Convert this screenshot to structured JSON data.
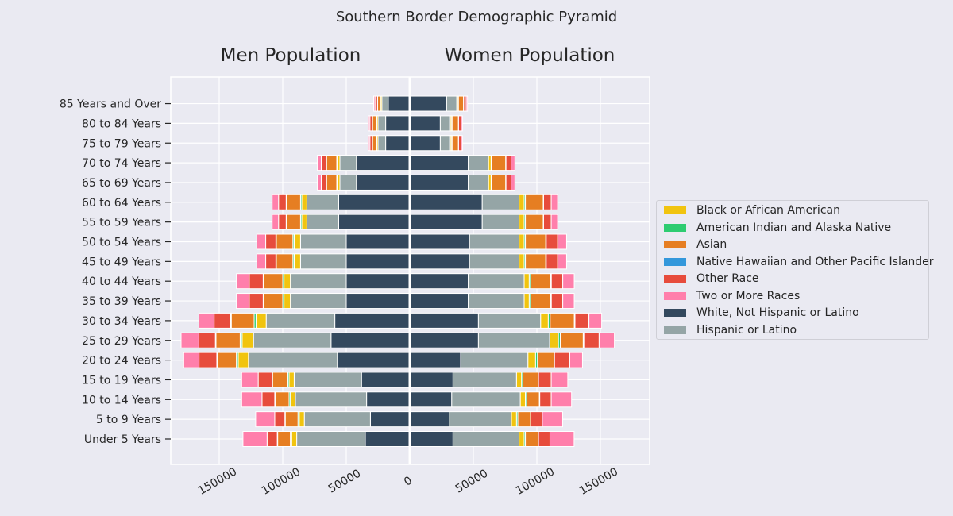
{
  "chart_data": {
    "type": "bar",
    "title": "Southern Border Demographic Pyramid",
    "left_title": "Men Population",
    "right_title": "Women Population",
    "categories": [
      "Under 5 Years",
      "5 to 9 Years",
      "10 to 14 Years",
      "15 to 19 Years",
      "20 to 24 Years",
      "25 to 29 Years",
      "30 to 34 Years",
      "35 to 39 Years",
      "40 to 44 Years",
      "45 to 49 Years",
      "50 to 54 Years",
      "55 to 59 Years",
      "60 to 64 Years",
      "65 to 69 Years",
      "70 to 74 Years",
      "75 to 79 Years",
      "80 to 84 Years",
      "85 Years and Over"
    ],
    "xlim": [
      -190000,
      190000
    ],
    "xticks": [
      -150000,
      -100000,
      -50000,
      0,
      50000,
      100000,
      150000
    ],
    "xtick_labels": [
      "150000",
      "100000",
      "50000",
      "0",
      "50000",
      "100000",
      "150000"
    ],
    "grid": true,
    "legend_position": "center-right",
    "series": [
      {
        "name": "White, Not Hispanic or Latino",
        "color": "#34495e",
        "men": [
          35000,
          31000,
          34000,
          38000,
          57000,
          62000,
          59000,
          50000,
          50000,
          50000,
          50000,
          56000,
          56000,
          42000,
          42000,
          19000,
          19000,
          17000
        ],
        "women": [
          34000,
          31000,
          33000,
          34000,
          40000,
          54000,
          54000,
          46000,
          46000,
          47000,
          47000,
          57000,
          57000,
          46000,
          46000,
          24000,
          24000,
          29000
        ]
      },
      {
        "name": "Hispanic or Latino",
        "color": "#95a5a6",
        "men": [
          54000,
          52000,
          56000,
          53000,
          70000,
          61000,
          54000,
          44000,
          44000,
          36000,
          36000,
          25000,
          25000,
          13000,
          13000,
          6000,
          6000,
          5000
        ],
        "women": [
          52000,
          49000,
          54000,
          50000,
          53000,
          56000,
          49000,
          44000,
          44000,
          39000,
          39000,
          29000,
          29000,
          16000,
          16000,
          8000,
          8000,
          8000
        ]
      },
      {
        "name": "Black or African American",
        "color": "#f1c40f",
        "men": [
          4000,
          4000,
          4000,
          4000,
          8000,
          9000,
          8000,
          5000,
          5000,
          5000,
          5000,
          4000,
          4000,
          2000,
          2000,
          1000,
          1000,
          1000
        ],
        "women": [
          4000,
          4000,
          4000,
          4000,
          6000,
          7000,
          6000,
          4000,
          4000,
          4000,
          4000,
          4000,
          4000,
          2000,
          2000,
          1000,
          1000,
          1000
        ]
      },
      {
        "name": "American Indian and Alaska Native",
        "color": "#2ecc71",
        "men": [
          1000,
          1000,
          1000,
          1000,
          1500,
          1500,
          1500,
          1000,
          1000,
          1000,
          1000,
          1000,
          1000,
          500,
          500,
          300,
          300,
          300
        ],
        "women": [
          1000,
          1000,
          1000,
          1000,
          1500,
          1500,
          1500,
          1000,
          1000,
          1000,
          1000,
          1000,
          1000,
          500,
          500,
          300,
          300,
          300
        ]
      },
      {
        "name": "Asian",
        "color": "#e67e22",
        "men": [
          10000,
          10000,
          11000,
          12000,
          15000,
          19000,
          18000,
          15000,
          15000,
          13000,
          13000,
          11000,
          11000,
          8000,
          8000,
          3000,
          3000,
          2000
        ],
        "women": [
          10000,
          10000,
          10000,
          12000,
          13000,
          18000,
          19000,
          16000,
          16000,
          16000,
          16000,
          14000,
          14000,
          11000,
          11000,
          5000,
          5000,
          4000
        ]
      },
      {
        "name": "Native Hawaiian and Other Pacific Islander",
        "color": "#3498db",
        "men": [
          300,
          300,
          300,
          300,
          400,
          500,
          500,
          400,
          400,
          400,
          400,
          300,
          300,
          200,
          200,
          100,
          100,
          100
        ],
        "women": [
          300,
          300,
          300,
          300,
          400,
          500,
          500,
          400,
          400,
          400,
          400,
          300,
          300,
          200,
          200,
          100,
          100,
          100
        ]
      },
      {
        "name": "Other Race",
        "color": "#e74c3c",
        "men": [
          8000,
          8000,
          10000,
          11000,
          14000,
          13000,
          13000,
          11000,
          11000,
          8000,
          8000,
          6000,
          6000,
          4000,
          4000,
          2000,
          2000,
          2000
        ],
        "women": [
          9000,
          9000,
          9000,
          10000,
          12000,
          12000,
          11000,
          9000,
          9000,
          9000,
          9000,
          6000,
          6000,
          4000,
          4000,
          2000,
          2000,
          2000
        ]
      },
      {
        "name": "Two or More Races",
        "color": "#ff7fab",
        "men": [
          19000,
          15000,
          16000,
          13000,
          12000,
          14000,
          12000,
          10000,
          10000,
          7000,
          7000,
          5000,
          5000,
          3000,
          3000,
          1000,
          1000,
          1000
        ],
        "women": [
          19000,
          16000,
          16000,
          13000,
          10000,
          12000,
          10000,
          9000,
          9000,
          7000,
          7000,
          5000,
          5000,
          3000,
          3000,
          1000,
          1000,
          1000
        ]
      }
    ],
    "legend": [
      {
        "name": "Black or African American",
        "color": "#f1c40f"
      },
      {
        "name": "American Indian and Alaska Native",
        "color": "#2ecc71"
      },
      {
        "name": "Asian",
        "color": "#e67e22"
      },
      {
        "name": "Native Hawaiian and Other Pacific Islander",
        "color": "#3498db"
      },
      {
        "name": "Other Race",
        "color": "#e74c3c"
      },
      {
        "name": "Two or More Races",
        "color": "#ff7fab"
      },
      {
        "name": "White, Not Hispanic or Latino",
        "color": "#34495e"
      },
      {
        "name": "Hispanic or Latino",
        "color": "#95a5a6"
      }
    ]
  }
}
